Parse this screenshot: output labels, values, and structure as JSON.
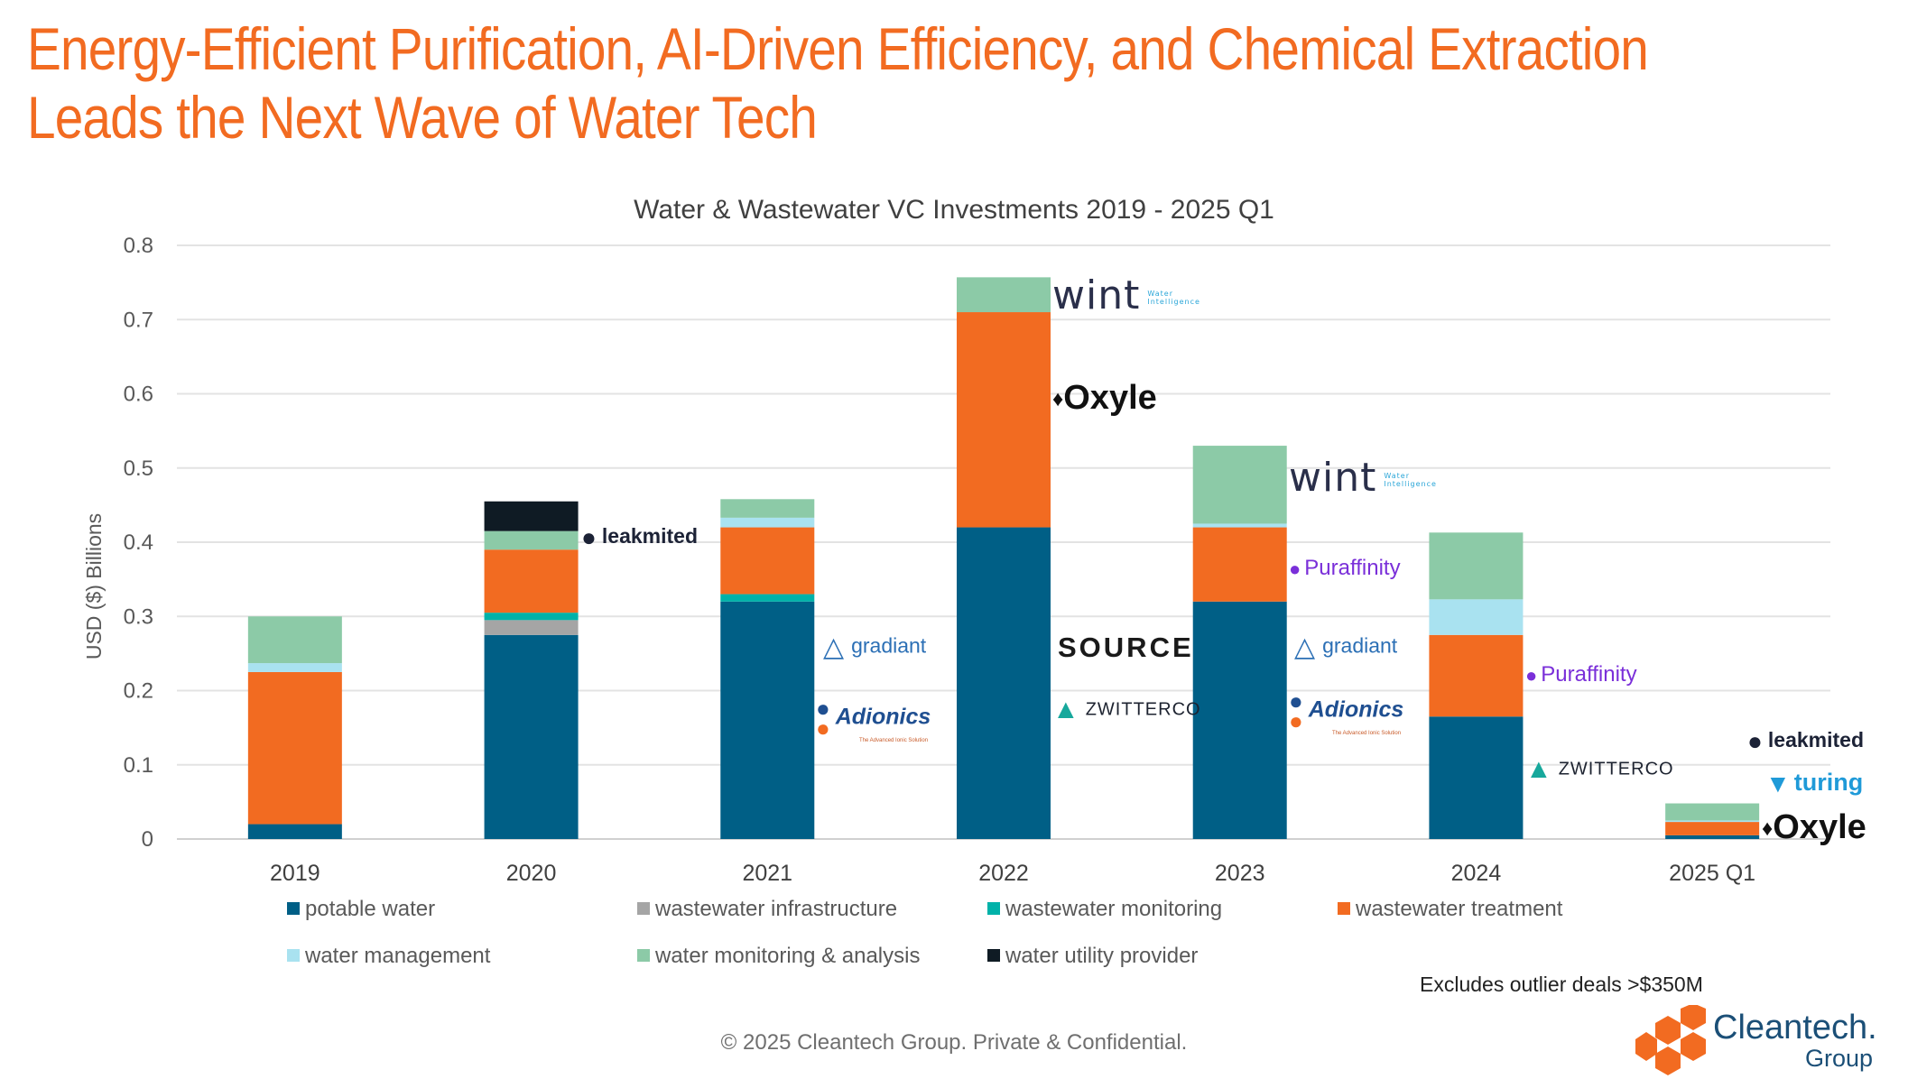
{
  "headline": {
    "line1": "Energy-Efficient Purification, AI-Driven Efficiency, and Chemical Extraction",
    "line2": "Leads the Next Wave of Water Tech",
    "color": "#F26B21"
  },
  "chart_data": {
    "type": "bar",
    "stacked": true,
    "title": "Water & Wastewater VC Investments 2019 - 2025 Q1",
    "xlabel": "",
    "ylabel": "USD ($) Billions",
    "ylim": [
      0,
      0.8
    ],
    "yticks": [
      "0",
      "0.1",
      "0.2",
      "0.3",
      "0.4",
      "0.5",
      "0.6",
      "0.7",
      "0.8"
    ],
    "grid": true,
    "legend_position": "bottom",
    "categories": [
      "2019",
      "2020",
      "2021",
      "2022",
      "2023",
      "2024",
      "2025 Q1"
    ],
    "series": [
      {
        "name": "potable water",
        "color": "#005F86",
        "values": [
          0.02,
          0.275,
          0.32,
          0.42,
          0.32,
          0.165,
          0.005
        ]
      },
      {
        "name": "wastewater infrastructure",
        "color": "#A5A5A5",
        "values": [
          0,
          0.02,
          0,
          0,
          0,
          0,
          0
        ]
      },
      {
        "name": "wastewater monitoring",
        "color": "#00B2A9",
        "values": [
          0,
          0.01,
          0.01,
          0,
          0,
          0,
          0
        ]
      },
      {
        "name": "wastewater treatment",
        "color": "#F26B21",
        "values": [
          0.205,
          0.085,
          0.09,
          0.29,
          0.1,
          0.11,
          0.018
        ]
      },
      {
        "name": "water management",
        "color": "#A9E2F0",
        "values": [
          0.012,
          0,
          0.013,
          0,
          0.005,
          0.048,
          0.002
        ]
      },
      {
        "name": "water monitoring & analysis",
        "color": "#8CCAA7",
        "values": [
          0.063,
          0.025,
          0.025,
          0.047,
          0.105,
          0.09,
          0.023
        ]
      },
      {
        "name": "water utility provider",
        "color": "#0F1B24",
        "values": [
          0,
          0.04,
          0,
          0,
          0,
          0,
          0
        ]
      }
    ]
  },
  "logos": {
    "wint_2022": {
      "text": "wint",
      "sub1": "Water",
      "sub2": "Intelligence"
    },
    "oxyle_2022": {
      "text": "Oxyle"
    },
    "source_2022": {
      "text": "SOURCE"
    },
    "zwitterco_2022": {
      "text": "ZWITTERCO"
    },
    "leakmited_2020": {
      "text": "leakmited"
    },
    "gradiant_2021": {
      "text": "gradiant"
    },
    "adionics_2021": {
      "text": "Adionics",
      "tagline": "The Advanced Ionic Solution"
    },
    "wint_2023": {
      "text": "wint",
      "sub1": "Water",
      "sub2": "Intelligence"
    },
    "puraffinity_2023": {
      "text": "Puraffinity"
    },
    "gradiant_2023": {
      "text": "gradiant"
    },
    "adionics_2023": {
      "text": "Adionics",
      "tagline": "The Advanced Ionic Solution"
    },
    "puraffinity_2024": {
      "text": "Puraffinity"
    },
    "zwitterco_2024": {
      "text": "ZWITTERCO"
    },
    "leakmited_2025": {
      "text": "leakmited"
    },
    "turing_2025": {
      "text": "turing"
    },
    "oxyle_2025": {
      "text": "Oxyle"
    }
  },
  "footnote": "Excludes outlier deals >$350M",
  "copyright": "© 2025 Cleantech Group. Private & Confidential.",
  "brand": {
    "name": "Cleantech.",
    "sub": "Group",
    "color": "#F26B21"
  }
}
